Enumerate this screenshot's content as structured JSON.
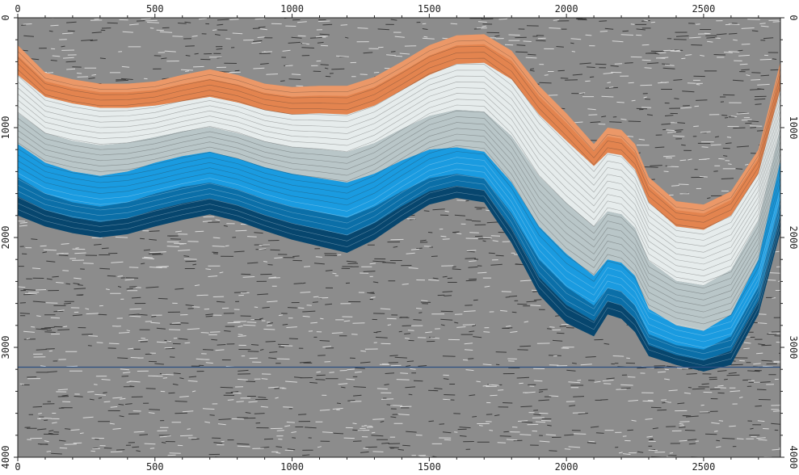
{
  "colors": {
    "background": "#ffffff",
    "noise_dark": "#3a3a3a",
    "noise_light": "#d8d8d8",
    "noise_mid": "#8c8c8c",
    "orange_band": "#e3844f",
    "orange_light": "#f0a57a",
    "light_band": "#e6ecec",
    "grey_band": "#b9c6c8",
    "blue_bright": "#1a9be0",
    "blue_mid": "#0b6fa8",
    "blue_dark": "#07466e",
    "horizon_line": "#2b4f80",
    "frame": "#222222"
  },
  "axes": {
    "top_ticks": [
      "0",
      "500",
      "1000",
      "1500",
      "2000",
      "2500"
    ],
    "bottom_ticks": [
      "0",
      "500",
      "1000",
      "1500",
      "2000",
      "2500"
    ],
    "left_ticks": [
      "0",
      "1000",
      "2000",
      "3000",
      "4000"
    ],
    "right_ticks": [
      "0",
      "1000",
      "2000",
      "3000",
      "4000"
    ],
    "x_tick_values": [
      0,
      500,
      1000,
      1500,
      2000,
      2500
    ],
    "y_tick_values": [
      0,
      1000,
      2000,
      3000,
      4000
    ],
    "x_range": [
      0,
      2780
    ],
    "y_range": [
      0,
      4000
    ]
  },
  "section": {
    "horizontal_line_depth": 3180,
    "surfaces": {
      "x": [
        0,
        100,
        200,
        300,
        400,
        500,
        600,
        700,
        800,
        900,
        1000,
        1100,
        1200,
        1300,
        1400,
        1500,
        1600,
        1700,
        1800,
        1900,
        2000,
        2100,
        2150,
        2200,
        2250,
        2300,
        2400,
        2500,
        2600,
        2700,
        2780
      ],
      "orange_top": [
        250,
        500,
        560,
        600,
        600,
        580,
        520,
        470,
        520,
        600,
        630,
        620,
        620,
        540,
        400,
        250,
        160,
        150,
        300,
        620,
        870,
        1150,
        1000,
        1020,
        1150,
        1450,
        1670,
        1700,
        1580,
        1200,
        400
      ],
      "orange_bottom": [
        520,
        720,
        780,
        820,
        820,
        800,
        760,
        720,
        770,
        840,
        880,
        870,
        880,
        800,
        660,
        520,
        420,
        410,
        560,
        880,
        1120,
        1350,
        1230,
        1250,
        1380,
        1680,
        1900,
        1930,
        1800,
        1420,
        650
      ],
      "blue_top": [
        1150,
        1320,
        1400,
        1440,
        1400,
        1320,
        1260,
        1220,
        1280,
        1360,
        1420,
        1460,
        1500,
        1420,
        1300,
        1200,
        1180,
        1220,
        1500,
        1900,
        2150,
        2350,
        2200,
        2230,
        2350,
        2650,
        2800,
        2850,
        2700,
        2200,
        1300
      ],
      "blue_mid": [
        1450,
        1600,
        1680,
        1720,
        1680,
        1600,
        1540,
        1500,
        1560,
        1650,
        1720,
        1770,
        1820,
        1720,
        1580,
        1460,
        1420,
        1460,
        1780,
        2200,
        2450,
        2620,
        2460,
        2490,
        2620,
        2880,
        2980,
        3020,
        2900,
        2450,
        1650
      ],
      "blue_bottom": [
        1800,
        1900,
        1960,
        2000,
        1970,
        1900,
        1840,
        1790,
        1850,
        1940,
        2020,
        2080,
        2140,
        2020,
        1850,
        1700,
        1640,
        1680,
        2050,
        2520,
        2780,
        2900,
        2700,
        2740,
        2860,
        3080,
        3160,
        3220,
        3160,
        2700,
        1950
      ]
    }
  }
}
